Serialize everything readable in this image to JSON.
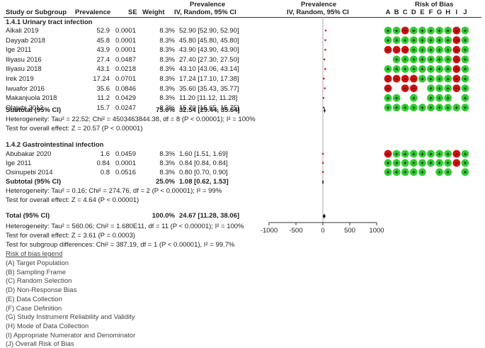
{
  "header": {
    "study": "Study or Subgroup",
    "prevalence": "Prevalence",
    "se": "SE",
    "weight": "Weight",
    "effect_top": "Prevalence",
    "effect_bottom": "IV, Random, 95% CI",
    "plot_top": "Prevalence",
    "plot_bottom": "IV, Random, 95% CI",
    "rob_title": "Risk of Bias",
    "rob_letters": [
      "A",
      "B",
      "C",
      "D",
      "E",
      "F",
      "G",
      "H",
      "I",
      "J"
    ]
  },
  "groups": [
    {
      "title": "1.4.1 Urinary tract infection",
      "rows": [
        {
          "study": "Alkali 2019",
          "prevalence": "52.9",
          "se": "0.0001",
          "weight": "8.3%",
          "ci": "52.90 [52.90, 52.90]",
          "est": 52.9,
          "lo": 52.9,
          "hi": 52.9
        },
        {
          "study": "Dayyab 2018",
          "prevalence": "45.8",
          "se": "0.0001",
          "weight": "8.3%",
          "ci": "45.80 [45.80, 45.80]",
          "est": 45.8,
          "lo": 45.8,
          "hi": 45.8
        },
        {
          "study": "Ige 2011",
          "prevalence": "43.9",
          "se": "0.0001",
          "weight": "8.3%",
          "ci": "43.90 [43.90, 43.90]",
          "est": 43.9,
          "lo": 43.9,
          "hi": 43.9
        },
        {
          "study": "Iliyasu 2016",
          "prevalence": "27.4",
          "se": "0.0487",
          "weight": "8.3%",
          "ci": "27.40 [27.30, 27.50]",
          "est": 27.4,
          "lo": 27.3,
          "hi": 27.5
        },
        {
          "study": "Iliyasu 2018",
          "prevalence": "43.1",
          "se": "0.0218",
          "weight": "8.3%",
          "ci": "43.10 [43.06, 43.14]",
          "est": 43.1,
          "lo": 43.06,
          "hi": 43.14
        },
        {
          "study": "Irek 2019",
          "prevalence": "17.24",
          "se": "0.0701",
          "weight": "8.3%",
          "ci": "17.24 [17.10, 17.38]",
          "est": 17.24,
          "lo": 17.1,
          "hi": 17.38
        },
        {
          "study": "Iwuafor 2016",
          "prevalence": "35.6",
          "se": "0.0846",
          "weight": "8.3%",
          "ci": "35.60 [35.43, 35.77]",
          "est": 35.6,
          "lo": 35.43,
          "hi": 35.77
        },
        {
          "study": "Makanjuola 2018",
          "prevalence": "11.2",
          "se": "0.0429",
          "weight": "8.3%",
          "ci": "11.20 [11.12, 11.28]",
          "est": 11.2,
          "lo": 11.12,
          "hi": 11.28
        },
        {
          "study": "Olajubi 2012",
          "prevalence": "15.7",
          "se": "0.0247",
          "weight": "8.3%",
          "ci": "15.70 [15.65, 15.75]",
          "est": 15.7,
          "lo": 15.65,
          "hi": 15.75
        }
      ],
      "subtotal": {
        "label": "Subtotal (95% CI)",
        "weight": "75.0%",
        "ci": "32.54 [29.44, 35.64]",
        "est": 32.54,
        "lo": 29.44,
        "hi": 35.64
      },
      "heterogeneity": "Heterogeneity: Tau² = 22.52; Chi² = 4503463844.38, df = 8 (P < 0.00001); I² = 100%",
      "overall_test": "Test for overall effect: Z = 20.57 (P < 0.00001)"
    },
    {
      "title": "1.4.2 Gastrointestinal infection",
      "rows": [
        {
          "study": "Abubakar 2020",
          "prevalence": "1.6",
          "se": "0.0459",
          "weight": "8.3%",
          "ci": "1.60 [1.51, 1.69]",
          "est": 1.6,
          "lo": 1.51,
          "hi": 1.69
        },
        {
          "study": "Ige 2011",
          "prevalence": "0.84",
          "se": "0.0001",
          "weight": "8.3%",
          "ci": "0.84 [0.84, 0.84]",
          "est": 0.84,
          "lo": 0.84,
          "hi": 0.84
        },
        {
          "study": "Osinupebi 2014",
          "prevalence": "0.8",
          "se": "0.0516",
          "weight": "8.3%",
          "ci": "0.80 [0.70, 0.90]",
          "est": 0.8,
          "lo": 0.7,
          "hi": 0.9
        }
      ],
      "subtotal": {
        "label": "Subtotal (95% CI)",
        "weight": "25.0%",
        "ci": "1.08 [0.62, 1.53]",
        "est": 1.08,
        "lo": 0.62,
        "hi": 1.53
      },
      "heterogeneity": "Heterogeneity: Tau² = 0.16; Chi² = 274.76, df = 2 (P < 0.00001); I² = 99%",
      "overall_test": "Test for overall effect: Z = 4.64 (P < 0.00001)"
    }
  ],
  "total": {
    "label": "Total (95% CI)",
    "weight": "100.0%",
    "ci": "24.67 [11.28, 38.06]",
    "est": 24.67,
    "lo": 11.28,
    "hi": 38.06
  },
  "footer": {
    "heterogeneity": "Heterogeneity: Tau² = 560.06; Chi² = 1.680E11, df = 11 (P < 0.00001); I² = 100%",
    "overall_test": "Test for overall effect: Z = 3.61 (P = 0.0003)",
    "subgroup_test": "Test for subgroup differences: Chi² = 387.19, df = 1 (P < 0.00001), I² = 99.7%"
  },
  "legend": {
    "title": "Risk of bias legend",
    "items": [
      "(A) Target Population",
      "(B) Sampling Frame",
      "(C) Random Selection",
      "(D) Non-Response Bias",
      "(E) Data Collection",
      "(F) Case Definition",
      "(G) Study Instrument Reliability and Validity",
      "(H) Mode of Data Collection",
      "(I) Appropriate Numerator and Denominator",
      "(J) Overall Risk of Bias"
    ]
  },
  "colors": {
    "low": "#33cc33",
    "high": "#cc1111",
    "point": "#cc2222",
    "text": "#222222"
  },
  "chart_data": {
    "type": "forest",
    "xlim": [
      -1000,
      1000
    ],
    "xticks": [
      "-1000",
      "-500",
      "0",
      "500",
      "1000"
    ],
    "xtick_values": [
      -1000,
      -500,
      0,
      500,
      1000
    ],
    "risk_of_bias": [
      [
        "low",
        "low",
        "high",
        "low",
        "low",
        "low",
        "low",
        "low",
        "high",
        "low"
      ],
      [
        "low",
        "low",
        "low",
        "low",
        "low",
        "low",
        "low",
        "low",
        "high",
        "low"
      ],
      [
        "high",
        "high",
        "high",
        "low",
        "low",
        "low",
        "low",
        "low",
        "high",
        "low"
      ],
      [
        "",
        "low",
        "low",
        "low",
        "low",
        "low",
        "low",
        "low",
        "high",
        "low"
      ],
      [
        "low",
        "low",
        "low",
        "low",
        "low",
        "low",
        "low",
        "low",
        "high",
        "low"
      ],
      [
        "high",
        "high",
        "high",
        "high",
        "low",
        "low",
        "low",
        "low",
        "high",
        "low"
      ],
      [
        "high",
        "",
        "high",
        "high",
        "",
        "low",
        "low",
        "low",
        "high",
        "low"
      ],
      [
        "low",
        "low",
        "",
        "low",
        "",
        "low",
        "low",
        "low",
        "",
        "low"
      ],
      [
        "low",
        "low",
        "low",
        "low",
        "low",
        "low",
        "low",
        "low",
        "low",
        "low"
      ],
      [
        "high",
        "low",
        "low",
        "low",
        "low",
        "low",
        "low",
        "low",
        "high",
        "low"
      ],
      [
        "low",
        "low",
        "low",
        "low",
        "low",
        "low",
        "low",
        "low",
        "high",
        "low"
      ],
      [
        "low",
        "low",
        "low",
        "low",
        "low",
        "",
        "low",
        "low",
        "",
        "low"
      ]
    ]
  }
}
